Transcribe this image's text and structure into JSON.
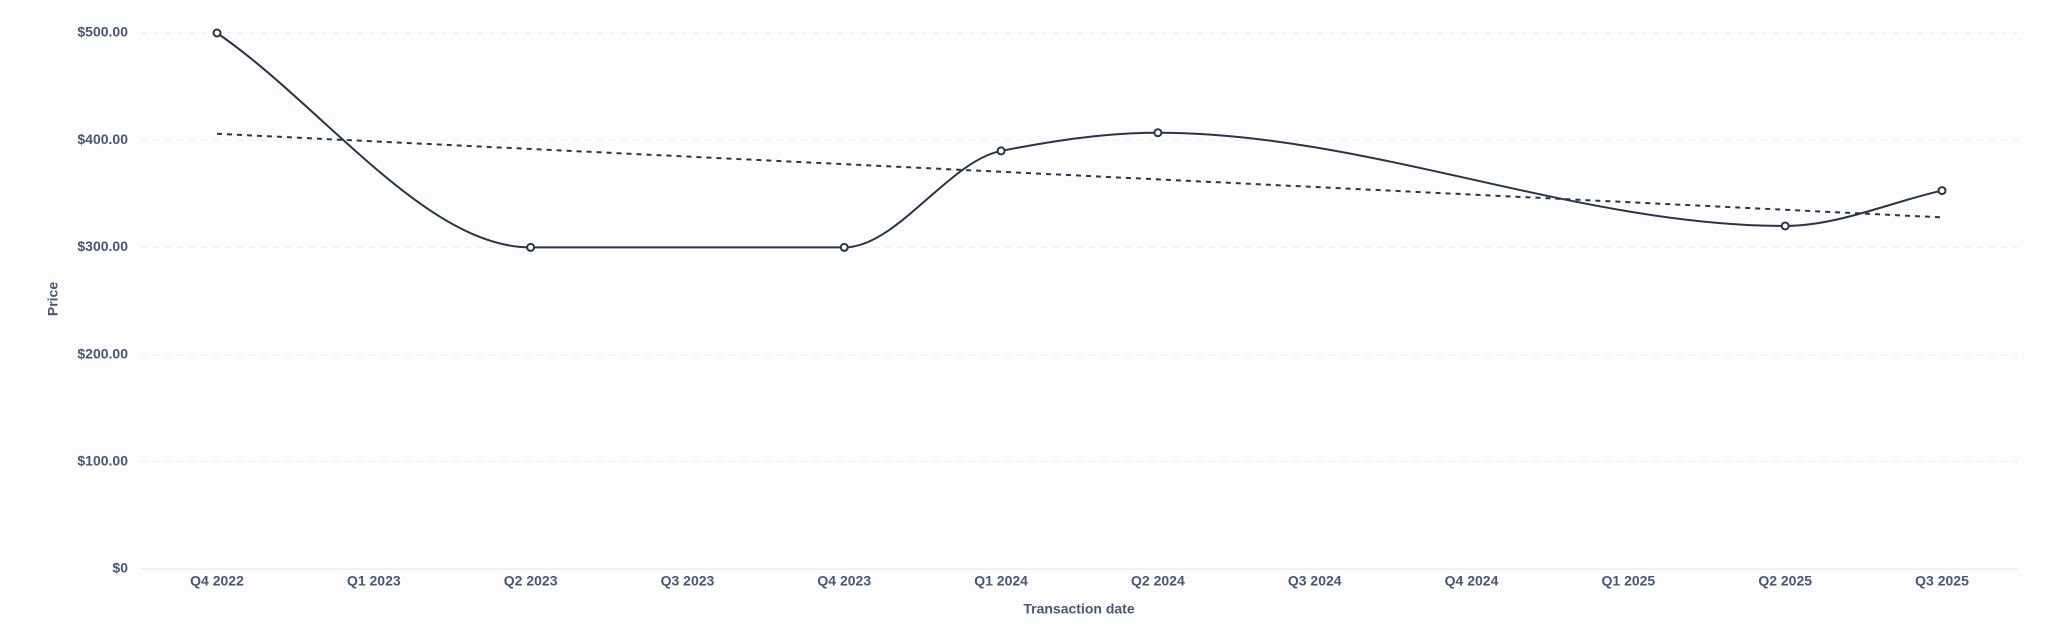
{
  "chart_data": {
    "type": "line",
    "x_label": "Transaction date",
    "y_label": "Price",
    "categories": [
      "Q4 2022",
      "Q1 2023",
      "Q2 2023",
      "Q3 2023",
      "Q4 2023",
      "Q1 2024",
      "Q2 2024",
      "Q3 2024",
      "Q4 2024",
      "Q1 2025",
      "Q2 2025",
      "Q3 2025"
    ],
    "series": [
      {
        "color": "#2b3445",
        "x": [
          "Q4 2022",
          "Q2 2023",
          "Q4 2023",
          "Q1 2024",
          "Q2 2024",
          "Q2 2025",
          "Q3 2025"
        ],
        "values": [
          500,
          300,
          300,
          390,
          407,
          320,
          353
        ],
        "markers": true
      },
      {
        "color": "#2b3445",
        "x": [
          "Q4 2022",
          "Q3 2025"
        ],
        "values": [
          406,
          328
        ],
        "dashed": true
      }
    ],
    "ylim": [
      0,
      500
    ],
    "yticks": [
      {
        "value": 0,
        "label": "$0"
      },
      {
        "value": 100,
        "label": "$100.00"
      },
      {
        "value": 200,
        "label": "$200.00"
      },
      {
        "value": 300,
        "label": "$300.00"
      },
      {
        "value": 400,
        "label": "$400.00"
      },
      {
        "value": 500,
        "label": "$500.00"
      }
    ],
    "grid": true
  }
}
